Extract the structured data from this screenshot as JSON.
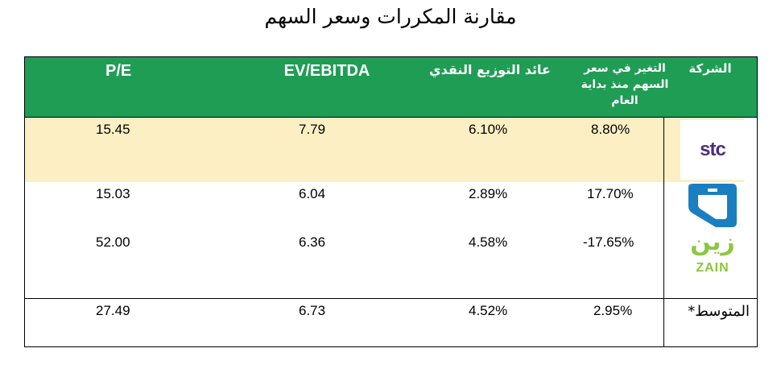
{
  "title": "مقارنة المكررات وسعر السهم",
  "headers": {
    "pe": "P/E",
    "ev_ebitda": "EV/EBITDA",
    "dividend_yield": "عائد التوزيع النقدي",
    "price_change": "التغير في سعر السهم منذ بداية العام",
    "company": "الشركة"
  },
  "rows": [
    {
      "company": "stc",
      "pe": "15.45",
      "ev_ebitda": "7.79",
      "dividend_yield": "6.10%",
      "price_change": "8.80%"
    },
    {
      "company": "mobily",
      "pe": "15.03",
      "ev_ebitda": "6.04",
      "dividend_yield": "2.89%",
      "price_change": "17.70%"
    },
    {
      "company": "zain",
      "pe": "52.00",
      "ev_ebitda": "6.36",
      "dividend_yield": "4.58%",
      "price_change": "-17.65%"
    }
  ],
  "average": {
    "label": "المتوسط*",
    "pe": "27.49",
    "ev_ebitda": "6.73",
    "dividend_yield": "4.52%",
    "price_change": "2.95%"
  },
  "logos": {
    "stc_text": "stc",
    "zain_arabic": "زين",
    "zain_english": "ZAIN"
  },
  "colors": {
    "header_bg": "#1f9d55",
    "stc_row_bg": "#fcefc4",
    "stc_purple": "#4f2d7f",
    "mobily_blue": "#1a7fc1",
    "zain_green": "#8cc63f"
  }
}
